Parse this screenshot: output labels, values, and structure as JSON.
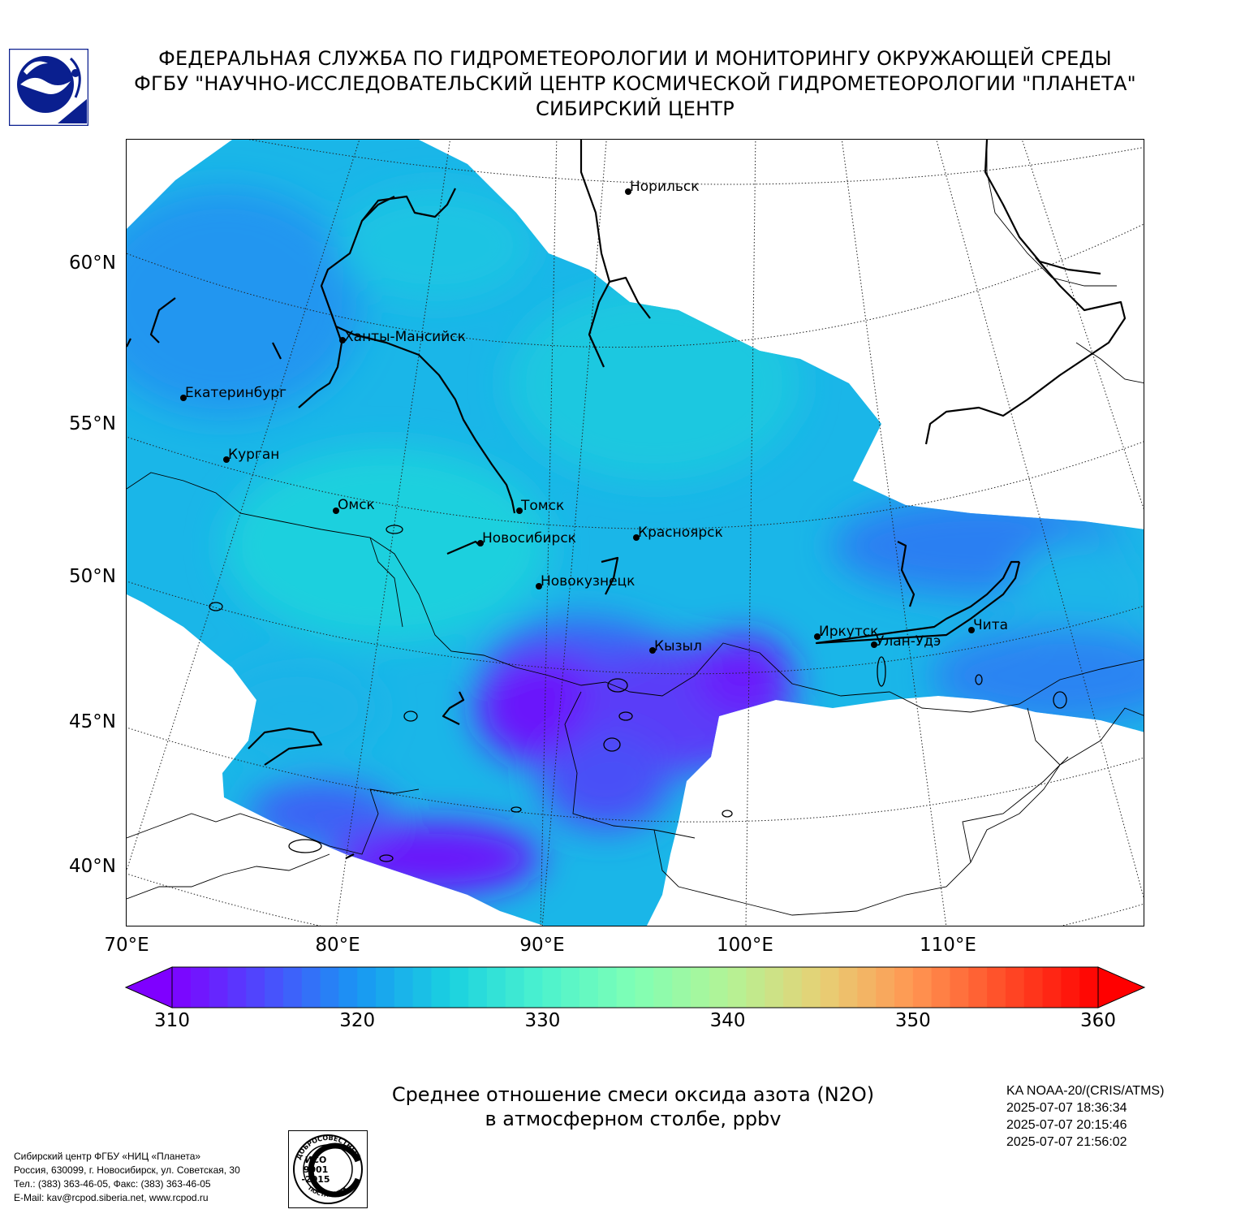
{
  "header": {
    "line1": "ФЕДЕРАЛЬНАЯ СЛУЖБА ПО ГИДРОМЕТЕОРОЛОГИИ И МОНИТОРИНГУ ОКРУЖАЮЩЕЙ СРЕДЫ",
    "line2": "ФГБУ \"НАУЧНО-ИССЛЕДОВАТЕЛЬСКИЙ ЦЕНТР КОСМИЧЕСКОЙ ГИДРОМЕТЕОРОЛОГИИ \"ПЛАНЕТА\"",
    "line3": "СИБИРСКИЙ ЦЕНТР"
  },
  "map": {
    "lat_labels": [
      "60°N",
      "55°N",
      "50°N",
      "45°N",
      "40°N"
    ],
    "lon_labels": [
      "70°E",
      "80°E",
      "90°E",
      "100°E",
      "110°E"
    ],
    "cities": [
      {
        "name": "Норильск"
      },
      {
        "name": "Ханты-Мансийск"
      },
      {
        "name": "Екатеринбург"
      },
      {
        "name": "Курган"
      },
      {
        "name": "Омск"
      },
      {
        "name": "Томск"
      },
      {
        "name": "Новосибирск"
      },
      {
        "name": "Красноярск"
      },
      {
        "name": "Новокузнецк"
      },
      {
        "name": "Кызыл"
      },
      {
        "name": "Иркутск"
      },
      {
        "name": "Улан-Удэ"
      },
      {
        "name": "Чита"
      }
    ]
  },
  "colorbar": {
    "min": 310,
    "max": 360,
    "ticks": [
      "310",
      "320",
      "330",
      "340",
      "350",
      "360"
    ],
    "colors": [
      "#7f00ff",
      "#4c4cfd",
      "#1996f3",
      "#1ad1e0",
      "#4cf2ce",
      "#80ffb4",
      "#b3f396",
      "#e6d175",
      "#ff9652",
      "#ff4c27",
      "#ff0000"
    ]
  },
  "caption": {
    "line1": "Среднее отношение смеси оксида азота (N2O)",
    "line2": "в атмосферном столбе, ppbv"
  },
  "satellite": {
    "name": "KA NOAA-20/(CRIS/ATMS)",
    "times": [
      "2025-07-07 18:36:34",
      "2025-07-07 20:15:46",
      "2025-07-07 21:56:02"
    ]
  },
  "footer": {
    "line1": "Сибирский центр ФГБУ «НИЦ «Планета»",
    "line2": "Россия, 630099, г. Новосибирск, ул. Советская, 30",
    "line3": "Тел.: (383) 363-46-05, Факс: (383) 363-46-05",
    "line4": "E-Mail: kav@rcpod.siberia.net, www.rcpod.ru"
  },
  "stamp": {
    "top_text": "ДОБРОСОВЕСТНЫЙ",
    "center1": "ИСО",
    "center2": "9001",
    "center3": "-2015",
    "bottom_text": "ПОСТАВЩИК"
  }
}
